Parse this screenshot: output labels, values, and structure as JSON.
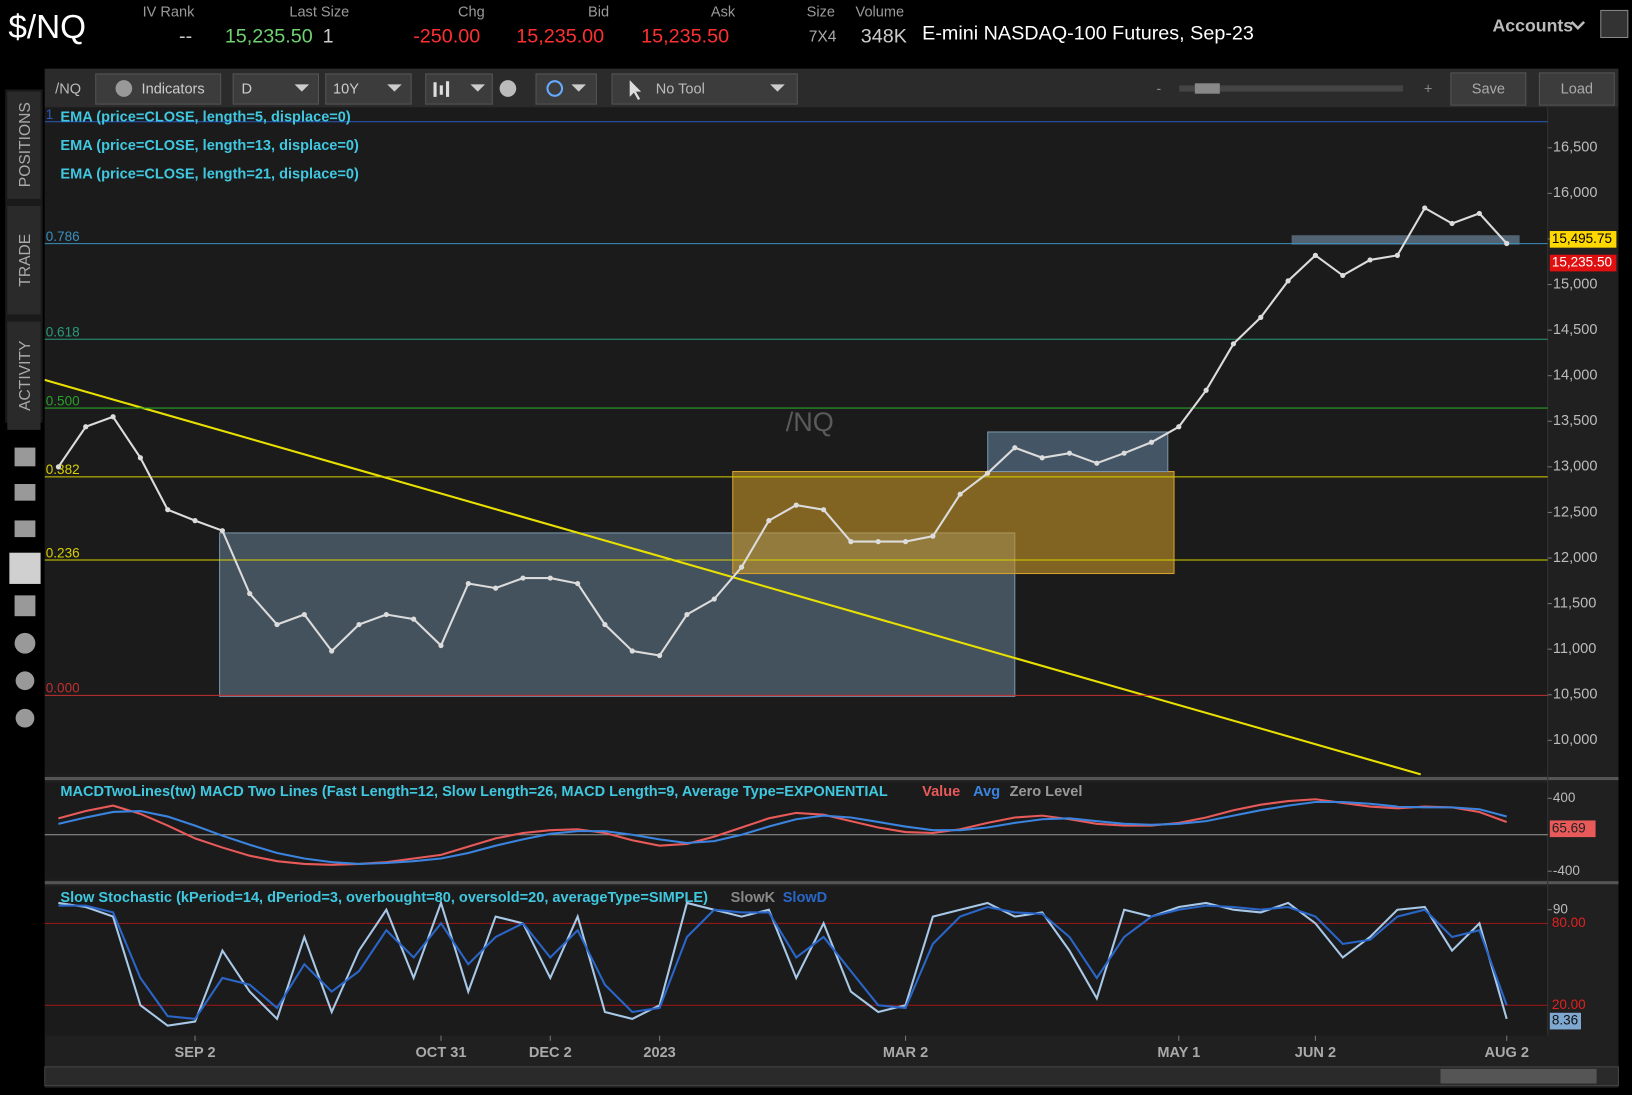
{
  "header": {
    "symbol": "$/NQ",
    "fields": [
      {
        "label": "IV Rank",
        "value": "--"
      },
      {
        "label": "Last Size",
        "value": "15,235.50",
        "extra": "1"
      },
      {
        "label": "Chg",
        "value": "-250.00"
      },
      {
        "label": "Bid",
        "value": "15,235.00"
      },
      {
        "label": "Ask",
        "value": "15,235.50"
      },
      {
        "label": "Size",
        "value": "7X4"
      },
      {
        "label": "Volume",
        "value": "348K"
      }
    ],
    "description": "E-mini NASDAQ-100 Futures, Sep-23",
    "accounts": "Accounts"
  },
  "toolbar": {
    "symbol": "/NQ",
    "indicators": "Indicators",
    "aggregation": "D",
    "range": "10Y",
    "tool": "No Tool",
    "zoom_out": "-",
    "zoom_in": "+",
    "save": "Save",
    "load": "Load"
  },
  "sidebar": {
    "tabs": [
      "POSITIONS",
      "TRADE",
      "ACTIVITY"
    ]
  },
  "chart_data": [
    {
      "type": "line",
      "watermark": "/NQ",
      "color": "#dcdcdc",
      "studies": [
        "EMA (price=CLOSE, length=5, displace=0)",
        "EMA (price=CLOSE, length=13, displace=0)",
        "EMA (price=CLOSE, length=21, displace=0)"
      ],
      "categories": [
        null,
        null,
        null,
        null,
        null,
        "SEP 2",
        null,
        null,
        null,
        null,
        null,
        null,
        null,
        null,
        "OCT 31",
        null,
        null,
        null,
        "DEC 2",
        null,
        null,
        null,
        "2023",
        null,
        null,
        null,
        null,
        null,
        null,
        null,
        null,
        "MAR 2",
        null,
        null,
        null,
        null,
        null,
        null,
        null,
        null,
        null,
        "MAY 1",
        null,
        null,
        null,
        null,
        "JUN 2",
        null,
        null,
        null,
        null,
        null,
        null,
        "AUG 2",
        null
      ],
      "values": [
        13000,
        13440,
        13550,
        13100,
        12530,
        12410,
        12300,
        11610,
        11270,
        11380,
        10980,
        11270,
        11380,
        11330,
        11040,
        11720,
        11670,
        11780,
        11780,
        11720,
        11270,
        10980,
        10930,
        11380,
        11550,
        11900,
        12410,
        12580,
        12530,
        12180,
        12180,
        12180,
        12240,
        12700,
        12930,
        13210,
        13100,
        13150,
        13040,
        13150,
        13270,
        13440,
        13840,
        14350,
        14640,
        15040,
        15320,
        15100,
        15270,
        15320,
        15840,
        15670,
        15780,
        15450,
        null
      ],
      "ylim": [
        9615,
        16945
      ],
      "yticks": [
        {
          "value": 10000,
          "label": "10,000"
        },
        {
          "value": 10500,
          "label": "10,500"
        },
        {
          "value": 11000,
          "label": "11,000"
        },
        {
          "value": 11500,
          "label": "11,500"
        },
        {
          "value": 12000,
          "label": "12,000"
        },
        {
          "value": 12500,
          "label": "12,500"
        },
        {
          "value": 13000,
          "label": "13,000"
        },
        {
          "value": 13500,
          "label": "13,500"
        },
        {
          "value": 14000,
          "label": "14,000"
        },
        {
          "value": 14500,
          "label": "14,500"
        },
        {
          "value": 15000,
          "label": "15,000"
        },
        {
          "value": 15500,
          "label": "15,500"
        },
        {
          "value": 16000,
          "label": "16,000"
        },
        {
          "value": 16500,
          "label": "16,500"
        }
      ],
      "levels": [
        {
          "value": 16786,
          "label": "1",
          "color": "#2a5bbf"
        },
        {
          "value": 15449,
          "label": "0.786",
          "color": "#3a8fbf"
        },
        {
          "value": 14400,
          "label": "0.618",
          "color": "#2a9a7a"
        },
        {
          "value": 13645,
          "label": "0.500",
          "color": "#2aa02a"
        },
        {
          "value": 12890,
          "label": "0.382",
          "color": "#d8d000"
        },
        {
          "value": 11978,
          "label": "0.236",
          "color": "#d8d000"
        },
        {
          "value": 10493,
          "label": "0.000",
          "color": "#c03030"
        }
      ],
      "price_labels": [
        {
          "value": 15495.75,
          "label": "15,495.75",
          "color": "#ffd800"
        },
        {
          "value": 15235.5,
          "label": "15,235.50",
          "color": "#e01010"
        }
      ]
    },
    {
      "type": "line",
      "title": "MACDTwoLines(tw) MACD Two Lines (Fast Length=12, Slow Length=26, MACD Length=9, Average Type=EXPONENTIAL",
      "zero_label": "Zero Level",
      "series": [
        {
          "name": "Value",
          "color": "#e85a5a",
          "values": [
            180,
            260,
            320,
            230,
            100,
            -40,
            -140,
            -230,
            -290,
            -320,
            -330,
            -320,
            -300,
            -260,
            -220,
            -130,
            -40,
            20,
            50,
            60,
            20,
            -60,
            -120,
            -100,
            -20,
            80,
            180,
            240,
            220,
            150,
            80,
            30,
            20,
            60,
            130,
            190,
            210,
            170,
            120,
            100,
            100,
            130,
            190,
            270,
            330,
            370,
            390,
            350,
            310,
            290,
            310,
            300,
            250,
            140,
            null
          ]
        },
        {
          "name": "Avg",
          "color": "#3a84e0",
          "values": [
            120,
            190,
            250,
            260,
            200,
            100,
            -10,
            -110,
            -200,
            -260,
            -300,
            -320,
            -310,
            -290,
            -260,
            -200,
            -120,
            -50,
            10,
            40,
            40,
            0,
            -50,
            -90,
            -70,
            0,
            90,
            170,
            210,
            190,
            140,
            90,
            50,
            50,
            80,
            130,
            170,
            180,
            150,
            120,
            110,
            120,
            150,
            210,
            270,
            320,
            360,
            360,
            340,
            310,
            300,
            300,
            280,
            200,
            null
          ]
        }
      ],
      "ylim": [
        -491,
        571
      ],
      "yticks": [
        400,
        -400
      ],
      "last_value": 65.69
    },
    {
      "type": "line",
      "title": "Slow Stochastic (kPeriod=14, dPeriod=3, overbought=80, oversold=20, averageType=SIMPLE)",
      "series": [
        {
          "name": "SlowK",
          "color": "#a8c8e8",
          "values": [
            95,
            92,
            85,
            20,
            5,
            8,
            60,
            30,
            10,
            70,
            15,
            60,
            90,
            40,
            95,
            30,
            85,
            80,
            40,
            85,
            15,
            10,
            20,
            95,
            90,
            85,
            90,
            40,
            80,
            30,
            15,
            20,
            85,
            90,
            95,
            85,
            88,
            60,
            25,
            90,
            85,
            92,
            95,
            90,
            88,
            95,
            80,
            55,
            70,
            90,
            92,
            60,
            80,
            10,
            null
          ]
        },
        {
          "name": "SlowD",
          "color": "#2a66c8",
          "values": [
            93,
            93,
            88,
            40,
            12,
            10,
            40,
            35,
            18,
            50,
            30,
            45,
            75,
            55,
            80,
            50,
            70,
            80,
            55,
            75,
            35,
            15,
            18,
            70,
            90,
            88,
            88,
            55,
            70,
            45,
            20,
            18,
            65,
            85,
            92,
            88,
            87,
            70,
            40,
            70,
            85,
            90,
            93,
            92,
            90,
            92,
            85,
            65,
            68,
            85,
            90,
            70,
            75,
            20,
            null
          ]
        }
      ],
      "ylim": [
        -2.3,
        106.8
      ],
      "yticks": [
        90
      ],
      "levels": [
        {
          "value": 80,
          "label": "80.00"
        },
        {
          "value": 20,
          "label": "20.00"
        }
      ],
      "last_value": 8.36
    }
  ]
}
